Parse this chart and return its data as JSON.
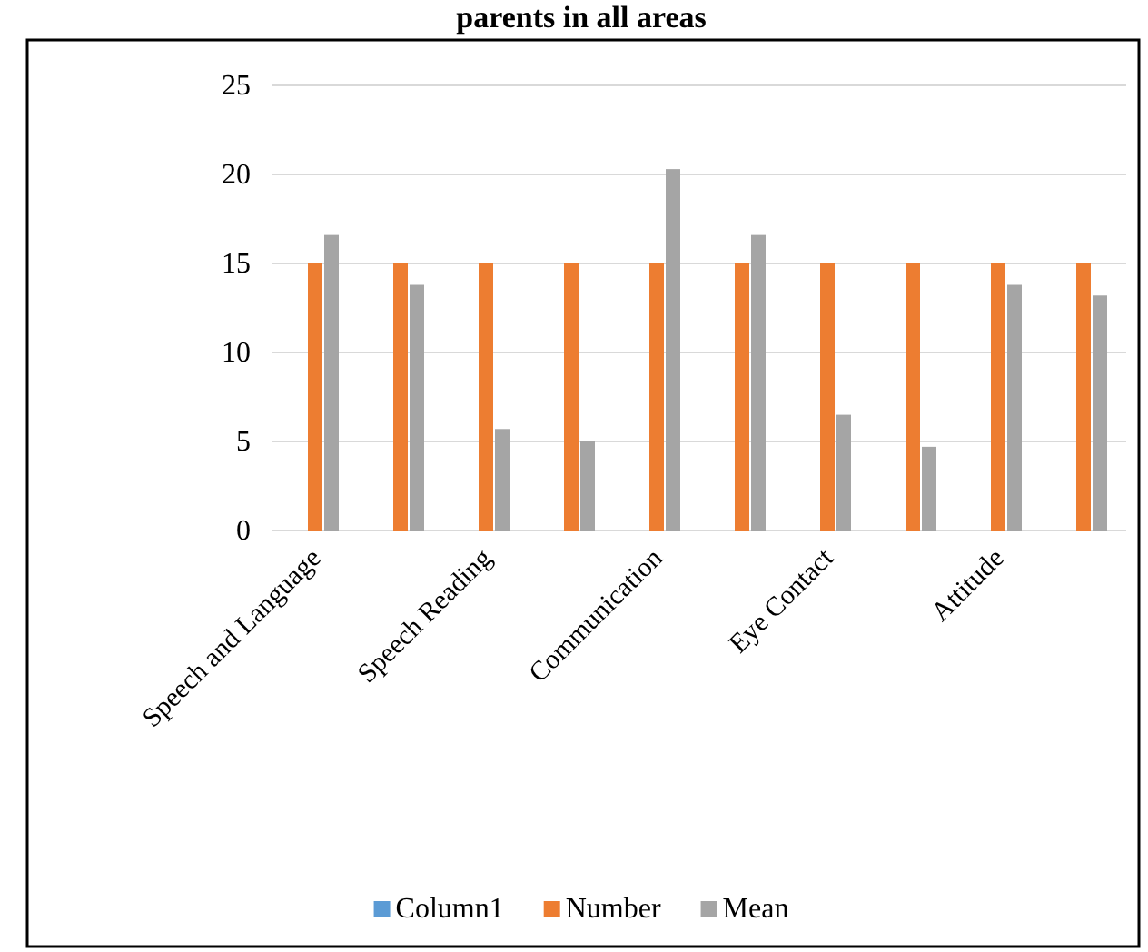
{
  "chart_data": {
    "type": "bar",
    "title": "parents in all areas",
    "categories": [
      "Speech and Language",
      null,
      "Speech Reading",
      null,
      "Communication",
      null,
      "Eye Contact",
      null,
      "Attitude",
      null
    ],
    "series": [
      {
        "name": "Column1",
        "color": "#5b9bd5",
        "values": [
          null,
          null,
          null,
          null,
          null,
          null,
          null,
          null,
          null,
          null
        ]
      },
      {
        "name": "Number",
        "color": "#ed7d31",
        "values": [
          15,
          15,
          15,
          15,
          15,
          15,
          15,
          15,
          15,
          15
        ]
      },
      {
        "name": "Mean",
        "color": "#a5a5a5",
        "values": [
          16.6,
          13.8,
          5.7,
          5.0,
          20.3,
          16.6,
          6.5,
          4.7,
          13.8,
          13.2
        ]
      }
    ],
    "ylim": [
      0,
      25
    ],
    "yticks": [
      0,
      5,
      10,
      15,
      20,
      25
    ],
    "grid": "y",
    "legend": "bottom"
  }
}
